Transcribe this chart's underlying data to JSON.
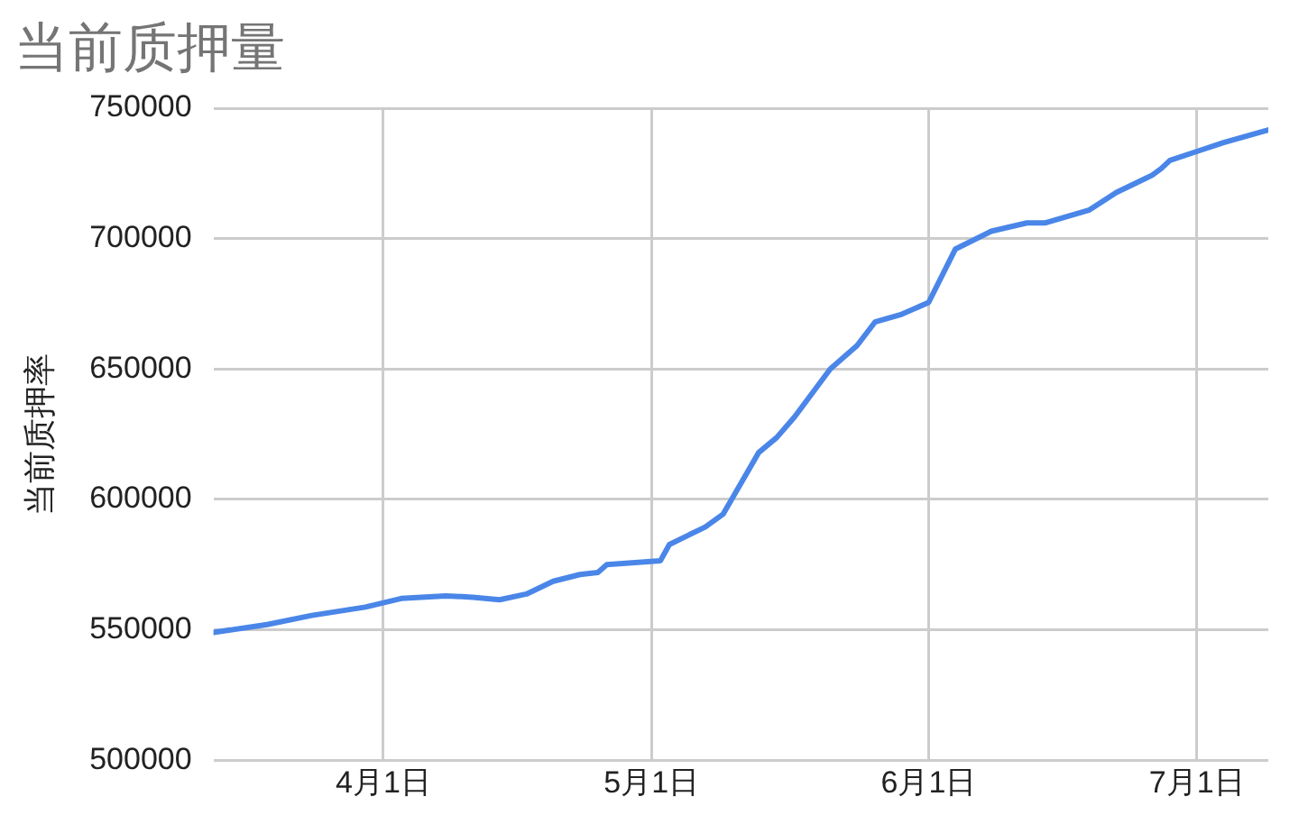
{
  "chart_data": {
    "type": "line",
    "title": "当前质押量",
    "ylabel": "当前质押率",
    "x": [
      "--03-13",
      "--03-19",
      "--03-24",
      "--03-30",
      "--04-03",
      "--04-08",
      "--04-11",
      "--04-14",
      "--04-17",
      "--04-20",
      "--04-23",
      "--04-25",
      "--04-26",
      "--05-02",
      "--05-03",
      "--05-07",
      "--05-09",
      "--05-13",
      "--05-15",
      "--05-17",
      "--05-21",
      "--05-24",
      "--05-26",
      "--05-29",
      "--06-01",
      "--06-04",
      "--06-08",
      "--06-12",
      "--06-14",
      "--06-19",
      "--06-22",
      "--06-26",
      "--06-27",
      "--06-28",
      "--07-01",
      "--07-04",
      "--07-09"
    ],
    "series": [
      {
        "color": "#4a86e8",
        "values": [
          549000,
          552000,
          555500,
          558700,
          562000,
          563000,
          562500,
          561500,
          563700,
          568600,
          571200,
          572000,
          575000,
          576500,
          582700,
          589400,
          594300,
          618000,
          623700,
          631600,
          650000,
          659000,
          668000,
          671000,
          675500,
          696000,
          702800,
          706000,
          706000,
          711000,
          717700,
          724300,
          726800,
          730000,
          733400,
          736800,
          741700
        ]
      }
    ],
    "xlim": [
      "--03-13",
      "--07-09"
    ],
    "xticks": [
      {
        "value": "--04-01",
        "label": "4月1日"
      },
      {
        "value": "--05-01",
        "label": "5月1日"
      },
      {
        "value": "--06-01",
        "label": "6月1日"
      },
      {
        "value": "--07-01",
        "label": "7月1日"
      }
    ],
    "ylim": [
      500000,
      750000
    ],
    "yticks": [
      500000,
      550000,
      600000,
      650000,
      700000,
      750000
    ],
    "grid": true,
    "legend": false,
    "marker": "none",
    "line_style": "solid"
  }
}
